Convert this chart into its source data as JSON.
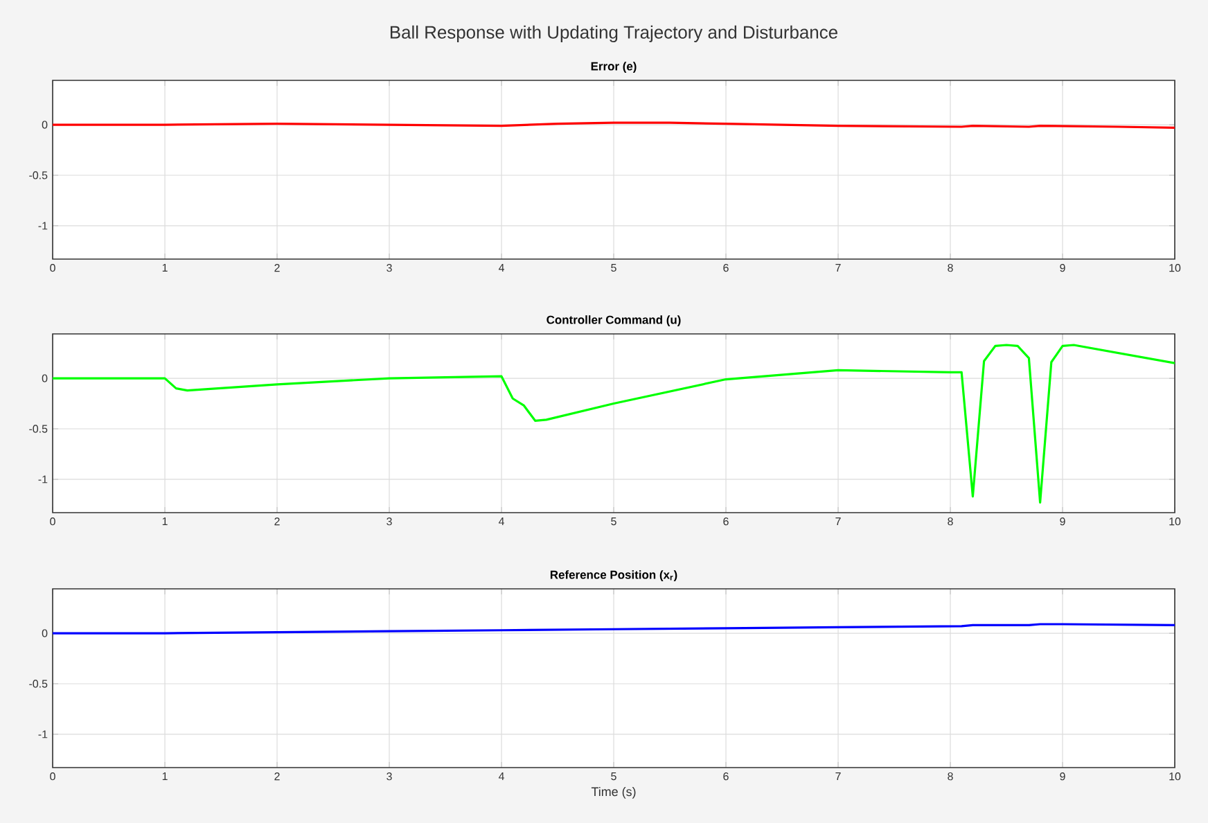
{
  "chart_data": [
    {
      "type": "line",
      "title": "Ball Response with Updating Trajectory and Disturbance",
      "subtitle": "Error (e)",
      "xlim": [
        0,
        10
      ],
      "ylim": [
        -1.33,
        0.44
      ],
      "xticks": [
        0,
        1,
        2,
        3,
        4,
        5,
        6,
        7,
        8,
        9,
        10
      ],
      "yticks": [
        0,
        -0.5,
        -1
      ],
      "grid": true,
      "x": [
        0,
        1,
        2,
        3,
        4,
        4.5,
        5,
        5.5,
        6,
        7,
        8.1,
        8.2,
        8.7,
        8.8,
        9.5,
        10
      ],
      "series": [
        {
          "color": "#ff0000",
          "values": [
            0,
            0,
            0.01,
            0,
            -0.01,
            0.01,
            0.02,
            0.02,
            0.01,
            -0.01,
            -0.02,
            -0.01,
            -0.02,
            -0.01,
            -0.02,
            -0.03
          ]
        }
      ]
    },
    {
      "type": "line",
      "subtitle": "Controller Command (u)",
      "xlim": [
        0,
        10
      ],
      "ylim": [
        -1.33,
        0.44
      ],
      "xticks": [
        0,
        1,
        2,
        3,
        4,
        5,
        6,
        7,
        8,
        9,
        10
      ],
      "yticks": [
        0,
        -0.5,
        -1
      ],
      "grid": true,
      "x": [
        0,
        1,
        1.1,
        1.2,
        2,
        3,
        4,
        4.1,
        4.2,
        4.3,
        4.4,
        5,
        6,
        7,
        8,
        8.1,
        8.2,
        8.3,
        8.4,
        8.5,
        8.6,
        8.7,
        8.8,
        8.9,
        9,
        9.1,
        10
      ],
      "series": [
        {
          "color": "#00ff00",
          "values": [
            0,
            0,
            -0.1,
            -0.12,
            -0.06,
            0,
            0.02,
            -0.2,
            -0.27,
            -0.42,
            -0.41,
            -0.25,
            -0.01,
            0.08,
            0.06,
            0.06,
            -1.17,
            0.17,
            0.32,
            0.33,
            0.32,
            0.2,
            -1.23,
            0.16,
            0.32,
            0.33,
            0.15
          ]
        }
      ]
    },
    {
      "type": "line",
      "subtitle": "Reference  Position  (x$_{r}$)",
      "xlabel": "Time (s)",
      "xlim": [
        0,
        10
      ],
      "ylim": [
        -1.33,
        0.44
      ],
      "xticks": [
        0,
        1,
        2,
        3,
        4,
        5,
        6,
        7,
        8,
        9,
        10
      ],
      "yticks": [
        0,
        -0.5,
        -1
      ],
      "grid": true,
      "x": [
        0,
        1,
        2,
        3,
        4,
        5,
        6,
        7,
        8.1,
        8.2,
        8.7,
        8.8,
        9,
        10
      ],
      "series": [
        {
          "color": "#0000ff",
          "values": [
            0,
            0,
            0.01,
            0.02,
            0.03,
            0.04,
            0.05,
            0.06,
            0.07,
            0.08,
            0.08,
            0.09,
            0.09,
            0.08
          ]
        }
      ]
    }
  ]
}
